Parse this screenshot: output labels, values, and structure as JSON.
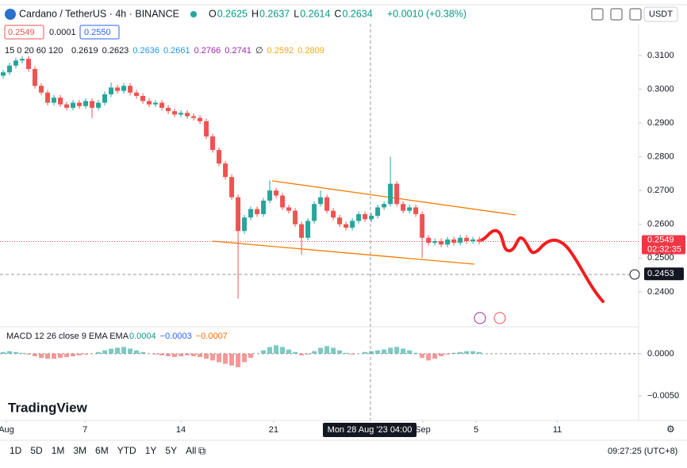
{
  "header": {
    "symbol": "Cardano / TetherUS · 4h · BINANCE",
    "ohlc": [
      {
        "key": "O",
        "value": "0.2625"
      },
      {
        "key": "H",
        "value": "0.2637"
      },
      {
        "key": "L",
        "value": "0.2614"
      },
      {
        "key": "C",
        "value": "0.2634"
      }
    ],
    "change": "+0.0010 (+0.38%)",
    "sell": "0.2549",
    "spread": "0.0001",
    "buy": "0.2550",
    "currency": "USDT"
  },
  "indicators": {
    "ma": {
      "name": "15 0 20 60 120",
      "values": [
        {
          "text": "0.2619",
          "color": "#131722"
        },
        {
          "text": "0.2623",
          "color": "#131722"
        },
        {
          "text": "0.2636",
          "color": "#2196f3"
        },
        {
          "text": "0.2661",
          "color": "#2196f3"
        },
        {
          "text": "0.2766",
          "color": "#9c27b0"
        },
        {
          "text": "0.2741",
          "color": "#9c27b0"
        },
        {
          "text": "∅",
          "color": "#131722"
        },
        {
          "text": "0.2592",
          "color": "#f5a623"
        },
        {
          "text": "0.2809",
          "color": "#f5a623"
        }
      ]
    },
    "macd": {
      "name": "MACD 12 26 close 9 EMA EMA",
      "values": [
        {
          "text": "0.0004",
          "color": "#089981"
        },
        {
          "text": "−0.0003",
          "color": "#2962ff"
        },
        {
          "text": "−0.0007",
          "color": "#ff6d00"
        }
      ]
    }
  },
  "chart_data": {
    "type": "candlestick",
    "up_color": "#26a69a",
    "down_color": "#ef5350",
    "xlim": [
      -0.5,
      100.1
    ],
    "xticks": [
      {
        "value": 0.5,
        "label": "Aug"
      },
      {
        "value": 12.9,
        "label": "7"
      },
      {
        "value": 28,
        "label": "14"
      },
      {
        "value": 42.6,
        "label": "21"
      },
      {
        "value": 66.1,
        "label": "Sep"
      },
      {
        "value": 74.5,
        "label": "5"
      },
      {
        "value": 87.3,
        "label": "11"
      }
    ],
    "ylim": [
      0.2301,
      0.3182
    ],
    "yticks": [
      {
        "value": 0.31,
        "label": "0.3100"
      },
      {
        "value": 0.3,
        "label": "0.3000"
      },
      {
        "value": 0.29,
        "label": "0.2900"
      },
      {
        "value": 0.28,
        "label": "0.2800"
      },
      {
        "value": 0.27,
        "label": "0.2700"
      },
      {
        "value": 0.26,
        "label": "0.2600"
      },
      {
        "value": 0.25,
        "label": "0.2500"
      },
      {
        "value": 0.24,
        "label": "0.2400"
      }
    ],
    "open": [
      0.304,
      0.305,
      0.307,
      0.3085,
      0.309,
      0.306,
      0.301,
      0.299,
      0.296,
      0.2975,
      0.2955,
      0.2945,
      0.296,
      0.295,
      0.2965,
      0.2945,
      0.296,
      0.2985,
      0.3005,
      0.2995,
      0.301,
      0.299,
      0.298,
      0.2965,
      0.2955,
      0.296,
      0.2945,
      0.2935,
      0.2925,
      0.293,
      0.292,
      0.2915,
      0.2905,
      0.286,
      0.282,
      0.278,
      0.274,
      0.268,
      0.258,
      0.262,
      0.2645,
      0.263,
      0.267,
      0.27,
      0.2685,
      0.265,
      0.264,
      0.26,
      0.256,
      0.261,
      0.266,
      0.268,
      0.264,
      0.262,
      0.26,
      0.259,
      0.261,
      0.263,
      0.2615,
      0.2625,
      0.265,
      0.266,
      0.272,
      0.266,
      0.264,
      0.265,
      0.263,
      0.256,
      0.2545,
      0.255,
      0.254,
      0.2555,
      0.2545,
      0.256,
      0.255,
      0.2555
    ],
    "high": [
      0.3058,
      0.3078,
      0.3093,
      0.3098,
      0.3098,
      0.3068,
      0.3018,
      0.2998,
      0.2983,
      0.2983,
      0.2963,
      0.2968,
      0.2968,
      0.2973,
      0.2973,
      0.2968,
      0.2993,
      0.302,
      0.3013,
      0.3018,
      0.3018,
      0.2998,
      0.2988,
      0.2973,
      0.2968,
      0.2968,
      0.2953,
      0.2943,
      0.2938,
      0.2938,
      0.2928,
      0.2923,
      0.2913,
      0.2868,
      0.2828,
      0.2788,
      0.2748,
      0.2688,
      0.2628,
      0.2653,
      0.2653,
      0.2678,
      0.273,
      0.2708,
      0.2693,
      0.2658,
      0.2648,
      0.2608,
      0.2618,
      0.2668,
      0.27,
      0.2688,
      0.2648,
      0.2628,
      0.2608,
      0.2618,
      0.2638,
      0.2638,
      0.2633,
      0.2658,
      0.2668,
      0.28,
      0.2728,
      0.2668,
      0.2658,
      0.2658,
      0.2638,
      0.2568,
      0.2558,
      0.2558,
      0.2563,
      0.2563,
      0.2568,
      0.2568,
      0.2563,
      0.2563
    ],
    "low": [
      0.3032,
      0.3042,
      0.3062,
      0.3077,
      0.3052,
      0.3002,
      0.2982,
      0.2952,
      0.2952,
      0.2947,
      0.2937,
      0.2937,
      0.2942,
      0.2942,
      0.2915,
      0.2937,
      0.2952,
      0.2977,
      0.2987,
      0.2987,
      0.2982,
      0.2972,
      0.2957,
      0.2947,
      0.2947,
      0.2937,
      0.2927,
      0.2917,
      0.2917,
      0.2912,
      0.2907,
      0.2897,
      0.2852,
      0.2812,
      0.2772,
      0.2732,
      0.2672,
      0.238,
      0.2572,
      0.2612,
      0.2622,
      0.2622,
      0.2662,
      0.2677,
      0.2642,
      0.2632,
      0.2592,
      0.251,
      0.2552,
      0.2602,
      0.2652,
      0.2632,
      0.2612,
      0.2592,
      0.2582,
      0.2582,
      0.2602,
      0.2607,
      0.2607,
      0.2617,
      0.2642,
      0.2652,
      0.2652,
      0.2632,
      0.2632,
      0.2622,
      0.25,
      0.2537,
      0.2537,
      0.2532,
      0.2532,
      0.2537,
      0.2537,
      0.2542,
      0.2542,
      0.2541
    ],
    "close": [
      0.305,
      0.307,
      0.3085,
      0.309,
      0.306,
      0.301,
      0.299,
      0.296,
      0.2975,
      0.2955,
      0.2945,
      0.296,
      0.295,
      0.2965,
      0.2945,
      0.296,
      0.2985,
      0.3005,
      0.2995,
      0.301,
      0.299,
      0.298,
      0.2965,
      0.2955,
      0.296,
      0.2945,
      0.2935,
      0.2925,
      0.293,
      0.292,
      0.2915,
      0.2905,
      0.286,
      0.282,
      0.278,
      0.274,
      0.268,
      0.258,
      0.262,
      0.2645,
      0.263,
      0.267,
      0.27,
      0.2685,
      0.265,
      0.264,
      0.26,
      0.256,
      0.261,
      0.266,
      0.268,
      0.264,
      0.262,
      0.26,
      0.259,
      0.261,
      0.263,
      0.2615,
      0.2625,
      0.265,
      0.266,
      0.272,
      0.266,
      0.264,
      0.265,
      0.263,
      0.256,
      0.2545,
      0.255,
      0.254,
      0.2555,
      0.2545,
      0.256,
      0.255,
      0.2555,
      0.2549
    ],
    "last_price": {
      "value": 0.2549,
      "label": "0.2549",
      "countdown": "02:32:35"
    },
    "crosshair": {
      "value": 0.2453,
      "label": "0.2453",
      "time": "Mon 28 Aug '23   04:00"
    },
    "macd": {
      "ylim": [
        -0.0079,
        0.0029
      ],
      "yticks": [
        {
          "value": 0,
          "label": "0.0000"
        },
        {
          "value": -0.005,
          "label": "−0.0050"
        }
      ],
      "histogram": [
        0.0002,
        0.0003,
        0.0002,
        0.0001,
        -0.0001,
        -0.0003,
        -0.0005,
        -0.0006,
        -0.0006,
        -0.0005,
        -0.0004,
        -0.0003,
        -0.0002,
        -0.0001,
        0,
        0.0002,
        0.0004,
        0.0006,
        0.0007,
        0.0008,
        0.0006,
        0.0004,
        0.0002,
        0,
        -0.0001,
        -0.0002,
        -0.0003,
        -0.0004,
        -0.0003,
        -0.0002,
        -0.0003,
        -0.0004,
        -0.0006,
        -0.0008,
        -0.001,
        -0.0012,
        -0.0014,
        -0.0016,
        -0.001,
        -0.0005,
        0,
        0.0004,
        0.0008,
        0.001,
        0.0008,
        0.0005,
        0.0002,
        -0.0002,
        -0.0001,
        0.0003,
        0.0007,
        0.0009,
        0.0007,
        0.0004,
        0.0001,
        -0.0001,
        0,
        0.0002,
        0.0003,
        0.0004,
        0.0005,
        0.0007,
        0.0008,
        0.0006,
        0.0004,
        0.0001,
        -0.0005,
        -0.0008,
        -0.0006,
        -0.0003,
        -0.0001,
        0.0001,
        0.0002,
        0.0003,
        0.0003,
        0.0002
      ]
    }
  },
  "branding": "TradingView",
  "toolbar": {
    "ranges": [
      "1D",
      "5D",
      "1M",
      "3M",
      "6M",
      "YTD",
      "1Y",
      "5Y",
      "All"
    ],
    "time": "09:27:25 (UTC+8)"
  }
}
